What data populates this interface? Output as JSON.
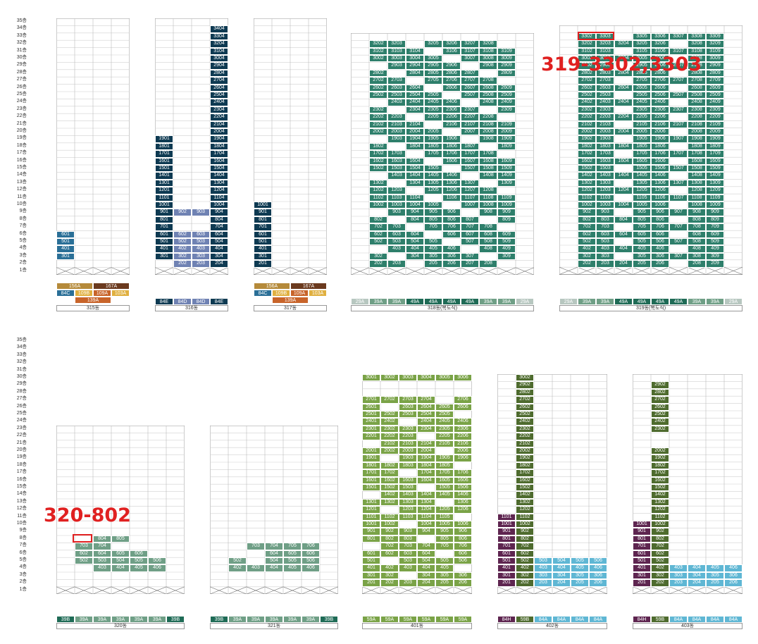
{
  "floors": [
    "35층",
    "34층",
    "33층",
    "32층",
    "31층",
    "30층",
    "29층",
    "28층",
    "27층",
    "26층",
    "25층",
    "24층",
    "23층",
    "22층",
    "21층",
    "20층",
    "19층",
    "18층",
    "17층",
    "16층",
    "15층",
    "14층",
    "13층",
    "12층",
    "11층",
    "10층",
    "9층",
    "8층",
    "7층",
    "6층",
    "5층",
    "4층",
    "3층",
    "2층",
    "1층"
  ],
  "colors": {
    "navy": "#0e3a52",
    "blue": "#2a6f97",
    "steel": "#6f82b3",
    "teal": "#2e7f6b",
    "teal_dark": "#1f6b56",
    "sage": "#6f9f86",
    "olive": "#7aa347",
    "olive_dark": "#4e6b2e",
    "plum": "#5e2550",
    "sky": "#5fb7d4",
    "grey": "#b7c7c0",
    "brown": "#6b3a1e",
    "gold": "#b58a3a",
    "orange": "#c8642a",
    "yellow": "#e0b040"
  },
  "annotations": [
    {
      "label": "319-3302,3303"
    },
    {
      "label": "320-802"
    }
  ],
  "buildings": [
    {
      "name": "315동",
      "summary": {
        "top": [
          "156A",
          "167A"
        ],
        "mid": [
          "84C",
          "109B",
          "109A",
          "103A"
        ],
        "bot": [
          "139A"
        ]
      },
      "cols": 4,
      "floors_top": 35,
      "units": [
        [
          "601",
          "501",
          "401",
          "301"
        ]
      ]
    },
    {
      "name": "316동",
      "summary": [
        "84E",
        "84D",
        "84D",
        "84E"
      ],
      "cols": 4,
      "floors_top": 35
    },
    {
      "name": "317동",
      "summary": {
        "top": [
          "156A",
          "167A"
        ],
        "mid": [
          "84C",
          "109B",
          "109A",
          "103A"
        ],
        "bot": [
          "139A"
        ]
      },
      "cols": 4,
      "floors_top": 35
    },
    {
      "name": "318동(복도식)",
      "summary": [
        "29A",
        "39A",
        "39A",
        "49A",
        "49A",
        "49A",
        "49A",
        "39A",
        "39A",
        "29A"
      ],
      "cols": 10,
      "floors_top": 33
    },
    {
      "name": "319동(복도식)",
      "summary": [
        "29A",
        "39A",
        "39A",
        "49A",
        "49A",
        "49A",
        "49A",
        "39A",
        "39A",
        "29A"
      ],
      "cols": 10,
      "floors_top": 34
    },
    {
      "name": "320동",
      "summary": [
        "39B",
        "39A",
        "39A",
        "39A",
        "39A",
        "39A",
        "39B"
      ],
      "cols": 7,
      "floors_top": 23
    },
    {
      "name": "321동",
      "summary": [
        "39B",
        "39A",
        "39A",
        "39A",
        "39A",
        "39A",
        "39B"
      ],
      "cols": 7,
      "floors_top": 23
    },
    {
      "name": "401동",
      "summary": [
        "59A",
        "59A",
        "59A",
        "59A",
        "59A",
        "59A"
      ],
      "cols": 6,
      "floors_top": 30
    },
    {
      "name": "402동",
      "summary": [
        "84H",
        "59B",
        "84A",
        "84A",
        "84A",
        "84A"
      ],
      "cols": 6,
      "floors_top": 30
    },
    {
      "name": "403동",
      "summary": [
        "84H",
        "59B",
        "84A",
        "84A",
        "84A",
        "84A"
      ],
      "cols": 6,
      "floors_top": 30
    }
  ]
}
